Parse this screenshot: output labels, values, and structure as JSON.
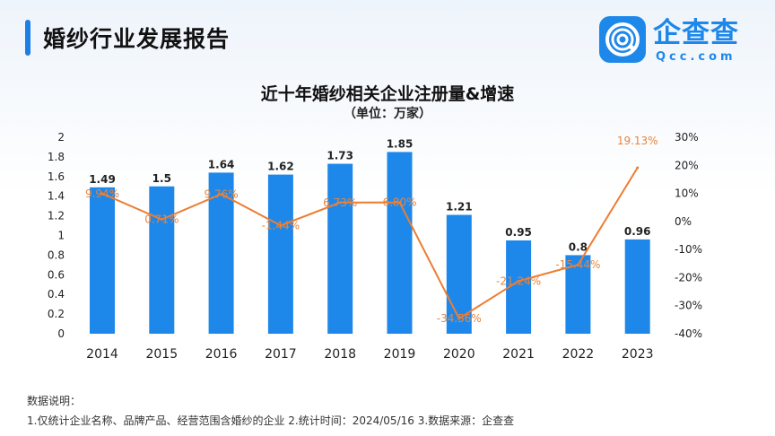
{
  "header": {
    "title": "婚纱行业发展报告"
  },
  "logo": {
    "cn": "企查查",
    "en": "Qcc.com"
  },
  "chart_data": {
    "type": "bar+line",
    "title": "近十年婚纱相关企业注册量&增速",
    "subtitle": "（单位：万家）",
    "categories": [
      "2014",
      "2015",
      "2016",
      "2017",
      "2018",
      "2019",
      "2020",
      "2021",
      "2022",
      "2023"
    ],
    "series": [
      {
        "type": "bar",
        "axis": "left",
        "values": [
          1.49,
          1.5,
          1.64,
          1.62,
          1.73,
          1.85,
          1.21,
          0.95,
          0.8,
          0.96
        ],
        "labels": [
          "1.49",
          "1.5",
          "1.64",
          "1.62",
          "1.73",
          "1.85",
          "1.21",
          "0.95",
          "0.8",
          "0.96"
        ],
        "color": "#1e88ea"
      },
      {
        "type": "line",
        "axis": "right",
        "values": [
          9.94,
          0.71,
          9.76,
          -1.44,
          6.73,
          6.8,
          -34.56,
          -21.24,
          -15.44,
          19.13
        ],
        "labels": [
          "9.94%",
          "0.71%",
          "9.76%",
          "-1.44%",
          "6.73%",
          "6.80%",
          "-34.56%",
          "-21.24%",
          "-15.44%",
          "19.13%"
        ],
        "color": "#ed7d31"
      }
    ],
    "y_left": {
      "min": 0,
      "max": 2,
      "ticks": [
        "0",
        "0.2",
        "0.4",
        "0.6",
        "0.8",
        "1",
        "1.2",
        "1.4",
        "1.6",
        "1.8",
        "2"
      ]
    },
    "y_right": {
      "min": -40,
      "max": 30,
      "ticks": [
        "-40%",
        "-30%",
        "-20%",
        "-10%",
        "0%",
        "10%",
        "20%",
        "30%"
      ]
    },
    "grid": false,
    "legend": "none"
  },
  "notes": {
    "heading": "数据说明：",
    "line": "1.仅统计企业名称、品牌产品、经营范围含婚纱的企业  2.统计时间：2024/05/16   3.数据来源：企查查"
  }
}
